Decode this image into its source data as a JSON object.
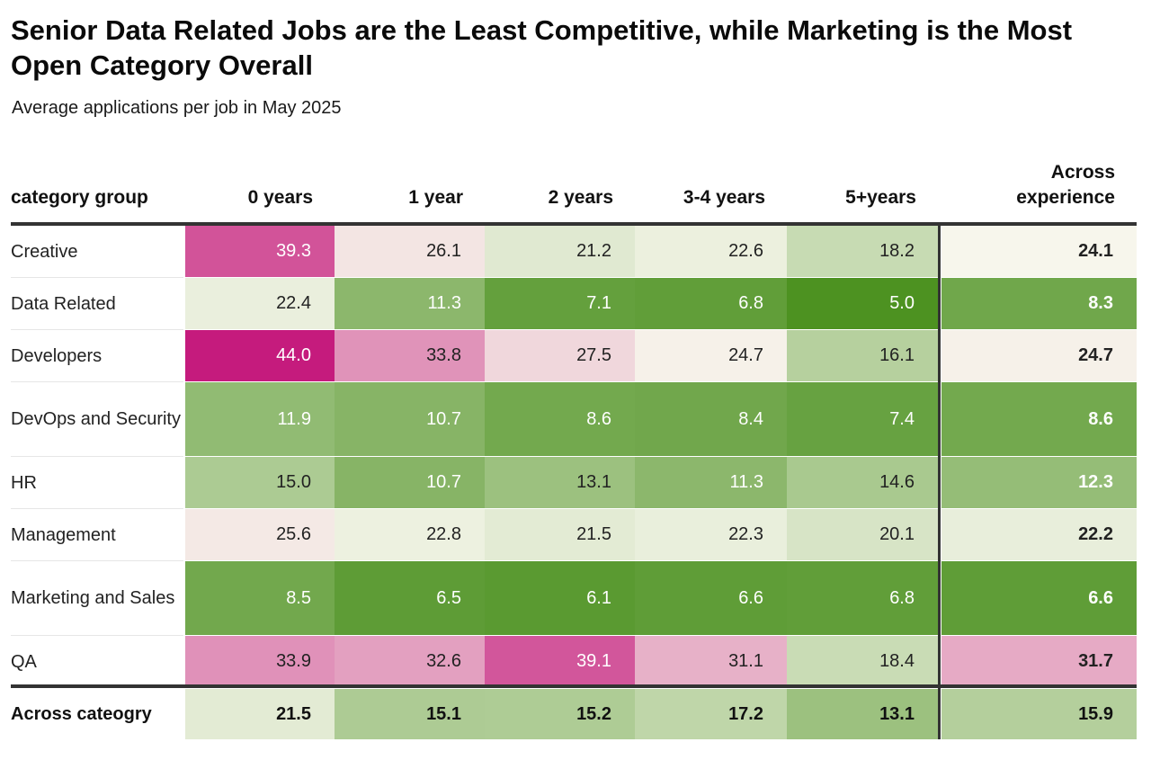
{
  "title": "Senior Data Related Jobs are the Least Competitive, while Marketing is the Most Open Category Overall",
  "subtitle": "Average applications per job in May 2025",
  "chart_data": {
    "type": "heatmap",
    "title": "Senior Data Related Jobs are the Least Competitive, while Marketing is the Most Open Category Overall",
    "subtitle": "Average applications per job in May 2025",
    "row_header": "category group",
    "columns": [
      "0 years",
      "1 year",
      "2 years",
      "3-4 years",
      "5+years"
    ],
    "summary_column": "Across experience",
    "rows": [
      {
        "label": "Creative",
        "values": [
          39.3,
          26.1,
          21.2,
          22.6,
          18.2
        ],
        "summary": 24.1
      },
      {
        "label": "Data Related",
        "values": [
          22.4,
          11.3,
          7.1,
          6.8,
          5.0
        ],
        "summary": 8.3
      },
      {
        "label": "Developers",
        "values": [
          44.0,
          33.8,
          27.5,
          24.7,
          16.1
        ],
        "summary": 24.7
      },
      {
        "label": "DevOps and Security",
        "values": [
          11.9,
          10.7,
          8.6,
          8.4,
          7.4
        ],
        "summary": 8.6
      },
      {
        "label": "HR",
        "values": [
          15.0,
          10.7,
          13.1,
          11.3,
          14.6
        ],
        "summary": 12.3
      },
      {
        "label": "Management",
        "values": [
          25.6,
          22.8,
          21.5,
          22.3,
          20.1
        ],
        "summary": 22.2
      },
      {
        "label": "Marketing and Sales",
        "values": [
          8.5,
          6.5,
          6.1,
          6.6,
          6.8
        ],
        "summary": 6.6
      },
      {
        "label": "QA",
        "values": [
          33.9,
          32.6,
          39.1,
          31.1,
          18.4
        ],
        "summary": 31.7
      }
    ],
    "total_row": {
      "label": "Across cateogry",
      "values": [
        21.5,
        15.1,
        15.2,
        17.2,
        13.1
      ],
      "summary": 15.9
    },
    "color_scale": {
      "low": "#4d9221",
      "mid": "#f7f7f7",
      "high": "#c51b7d",
      "diverging": true
    }
  }
}
